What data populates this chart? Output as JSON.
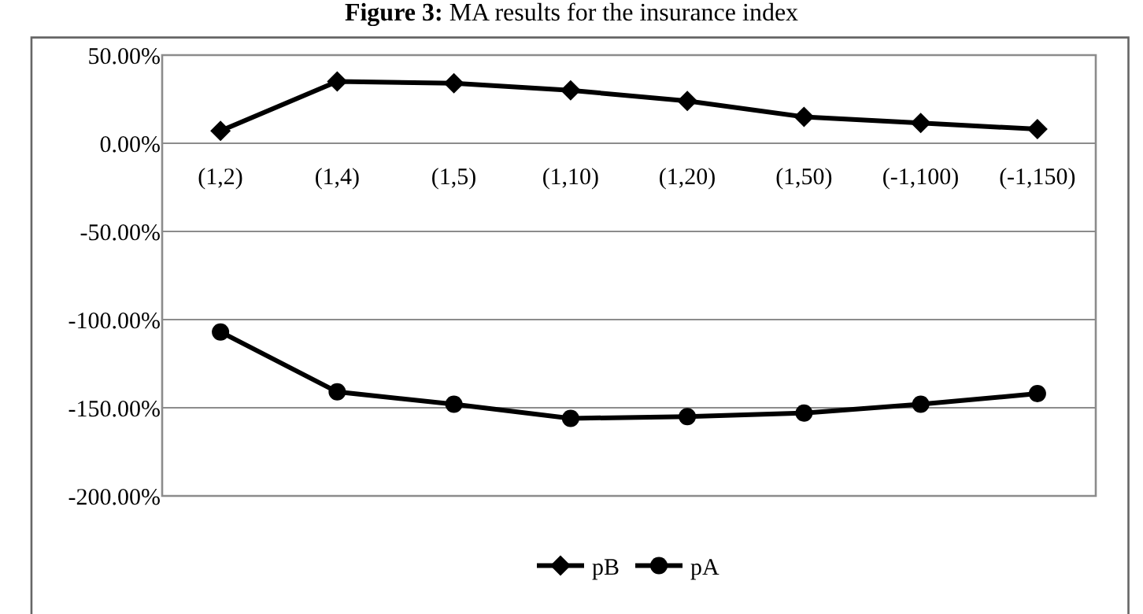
{
  "chart_data": {
    "type": "line",
    "title": "Figure 3: MA results for the insurance index",
    "categories": [
      "(1,2)",
      "(1,4)",
      "(1,5)",
      "(1,10)",
      "(1,20)",
      "(1,50)",
      "(-1,100)",
      "(-1,150)"
    ],
    "series": [
      {
        "name": "pB",
        "color": "#000000",
        "marker": "diamond",
        "values": [
          7,
          35,
          34,
          30,
          24,
          15,
          11.5,
          8
        ]
      },
      {
        "name": "pA",
        "color": "#000000",
        "marker": "circle",
        "values": [
          -107,
          -141,
          -148,
          -156,
          -155,
          -153,
          -148,
          -142
        ]
      }
    ],
    "ylim": [
      -200,
      50
    ],
    "yticks": [
      {
        "value": 50,
        "label": "50.00%"
      },
      {
        "value": 0,
        "label": "0.00%"
      },
      {
        "value": -50,
        "label": "-50.00%"
      },
      {
        "value": -100,
        "label": "-100.00%"
      },
      {
        "value": -150,
        "label": "-150.00%"
      },
      {
        "value": -200,
        "label": "-200.00%"
      }
    ],
    "grid": "y",
    "legend": "bottom",
    "line_style": "solid"
  }
}
